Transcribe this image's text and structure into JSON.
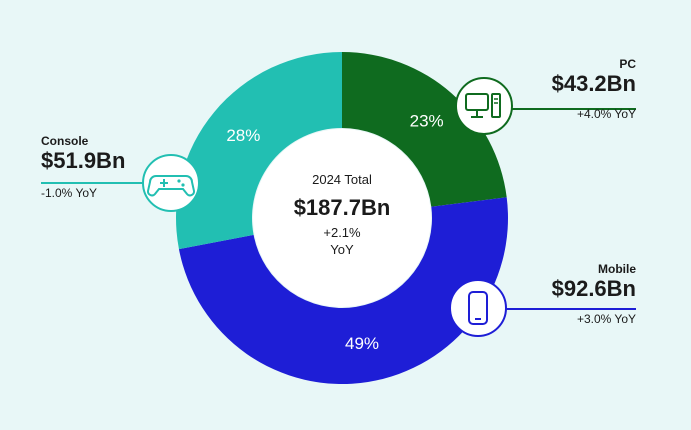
{
  "chart_data": {
    "type": "pie",
    "variant": "donut",
    "categories": [
      "PC",
      "Mobile",
      "Console"
    ],
    "values": [
      23,
      49,
      28
    ],
    "colors": [
      "#0f6b1f",
      "#1e1ed6",
      "#22bfb2"
    ],
    "value_labels": [
      "23%",
      "49%",
      "28%"
    ],
    "center": {
      "year_label": "2024 Total",
      "total": "$187.7Bn",
      "growth": "+2.1%",
      "growth_unit": "YoY"
    },
    "callouts": [
      {
        "name": "PC",
        "value": "$43.2Bn",
        "yoy": "+4.0% YoY",
        "icon": "desktop-computer-icon",
        "color": "#0f6b1f"
      },
      {
        "name": "Mobile",
        "value": "$92.6Bn",
        "yoy": "+3.0% YoY",
        "icon": "mobile-phone-icon",
        "color": "#1e1ed6"
      },
      {
        "name": "Console",
        "value": "$51.9Bn",
        "yoy": "-1.0% YoY",
        "icon": "gamepad-icon",
        "color": "#22bfb2"
      }
    ]
  }
}
